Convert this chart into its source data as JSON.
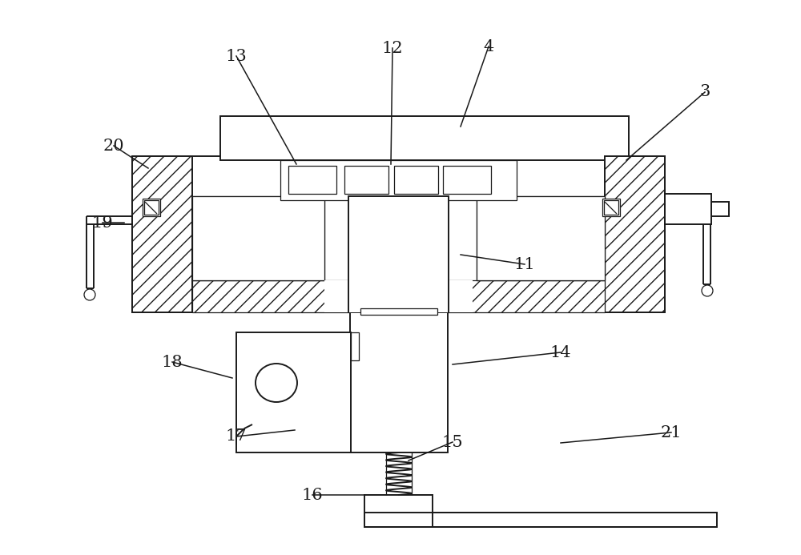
{
  "bg_color": "#ffffff",
  "line_color": "#1a1a1a",
  "hatch_color": "#1a1a1a",
  "figsize": [
    10.0,
    6.93
  ],
  "dpi": 100
}
